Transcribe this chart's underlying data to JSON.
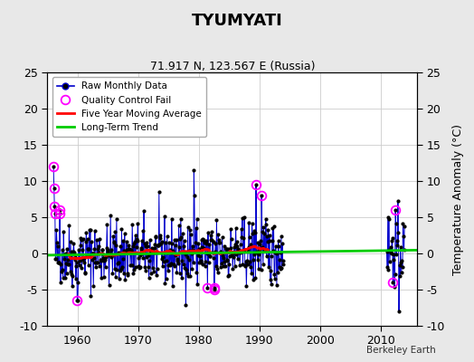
{
  "title": "TYUMYATI",
  "subtitle": "71.917 N, 123.567 E (Russia)",
  "ylabel": "Temperature Anomaly (°C)",
  "credit": "Berkeley Earth",
  "xlim": [
    1955,
    2016
  ],
  "ylim": [
    -10,
    25
  ],
  "yticks": [
    -10,
    -5,
    0,
    5,
    10,
    15,
    20,
    25
  ],
  "xticks": [
    1960,
    1970,
    1980,
    1990,
    2000,
    2010
  ],
  "bg_color": "#e8e8e8",
  "plot_bg_color": "#ffffff",
  "raw_color": "#0000cc",
  "dot_color": "#000000",
  "qc_color": "#ff00ff",
  "moving_avg_color": "#ff0000",
  "trend_color": "#00cc00",
  "trend_x": [
    1955,
    2016
  ],
  "trend_y": [
    -0.25,
    0.45
  ],
  "seed": 42,
  "anomaly_scale": 2.2,
  "anomaly_base_trend": 0.012
}
